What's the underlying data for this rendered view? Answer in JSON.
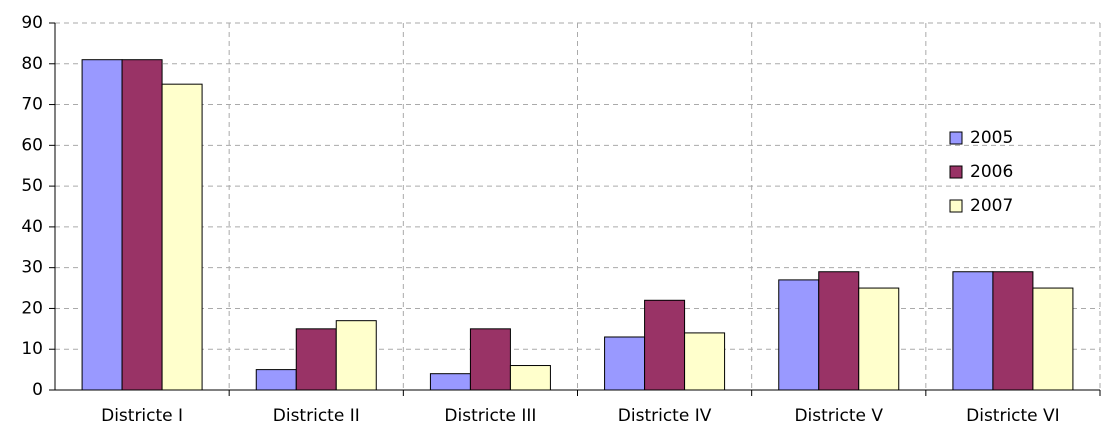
{
  "chart_data": {
    "type": "bar",
    "categories": [
      "Districte I",
      "Districte II",
      "Districte III",
      "Districte IV",
      "Districte V",
      "Districte VI"
    ],
    "series": [
      {
        "name": "2005",
        "color": "#9999ff",
        "values": [
          81,
          5,
          4,
          13,
          27,
          29
        ]
      },
      {
        "name": "2006",
        "color": "#993366",
        "values": [
          81,
          15,
          15,
          22,
          29,
          29
        ]
      },
      {
        "name": "2007",
        "color": "#ffffcc",
        "values": [
          75,
          17,
          6,
          14,
          25,
          25
        ]
      }
    ],
    "ylim": [
      0,
      90
    ],
    "yticks": [
      0,
      10,
      20,
      30,
      40,
      50,
      60,
      70,
      80,
      90
    ],
    "grid": true,
    "legend": "right"
  }
}
